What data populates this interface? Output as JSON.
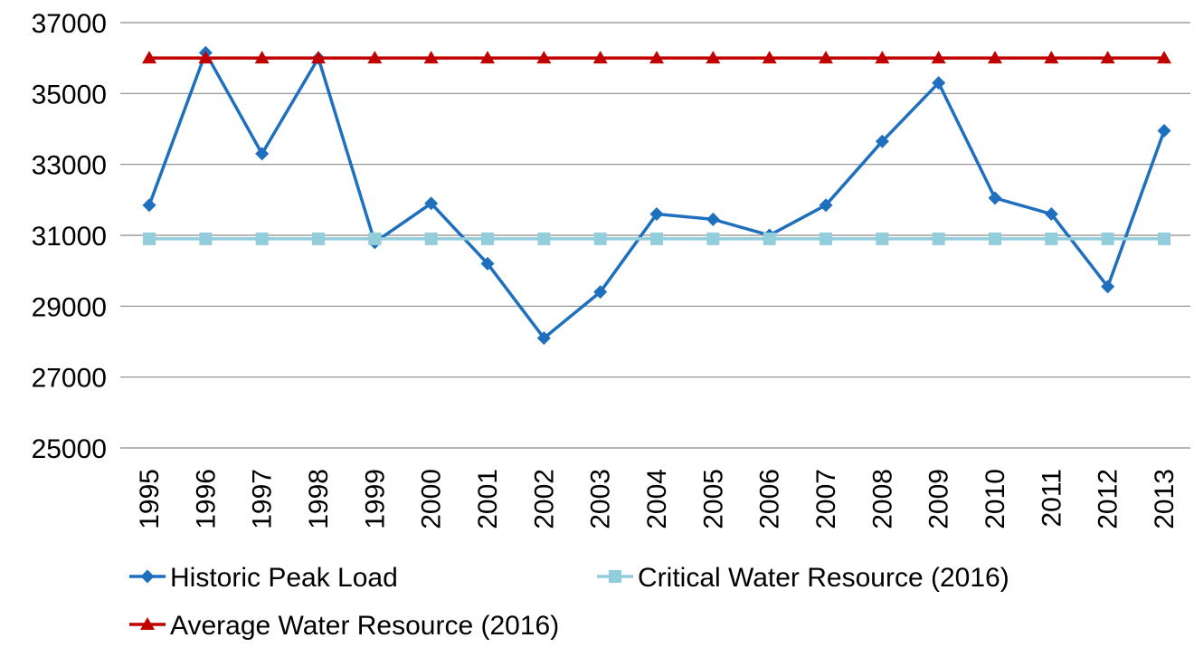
{
  "chart_data": {
    "type": "line",
    "title": "",
    "xlabel": "",
    "ylabel": "",
    "x": [
      "1995",
      "1996",
      "1997",
      "1998",
      "1999",
      "2000",
      "2001",
      "2002",
      "2003",
      "2004",
      "2005",
      "2006",
      "2007",
      "2008",
      "2009",
      "2010",
      "2011",
      "2012",
      "2013"
    ],
    "ylim": [
      25000,
      37000
    ],
    "yticks": [
      25000,
      27000,
      29000,
      31000,
      33000,
      35000,
      37000
    ],
    "grid": true,
    "legend": "bottom",
    "series": [
      {
        "name": "Historic Peak Load",
        "color": "#1f6fbf",
        "marker": "diamond",
        "values": [
          31850,
          36150,
          33300,
          36000,
          30800,
          31900,
          30200,
          28100,
          29400,
          31600,
          31450,
          31000,
          31850,
          33650,
          35300,
          32050,
          31600,
          29550,
          33950
        ]
      },
      {
        "name": "Critical Water Resource (2016)",
        "color": "#92cddc",
        "marker": "square",
        "values": [
          30900,
          30900,
          30900,
          30900,
          30900,
          30900,
          30900,
          30900,
          30900,
          30900,
          30900,
          30900,
          30900,
          30900,
          30900,
          30900,
          30900,
          30900,
          30900
        ]
      },
      {
        "name": "Average Water Resource (2016)",
        "color": "#c00000",
        "marker": "triangle",
        "values": [
          36000,
          36000,
          36000,
          36000,
          36000,
          36000,
          36000,
          36000,
          36000,
          36000,
          36000,
          36000,
          36000,
          36000,
          36000,
          36000,
          36000,
          36000,
          36000
        ]
      }
    ]
  }
}
